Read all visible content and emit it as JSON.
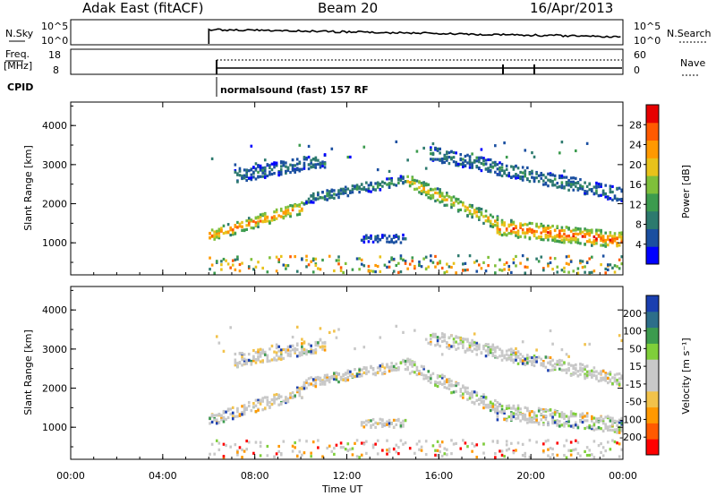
{
  "header": {
    "title": "Adak East (fitACF)",
    "beam": "Beam 20",
    "date": "16/Apr/2013"
  },
  "panels": {
    "nsky_label": "N.Sky",
    "nsky_ticks": [
      "10^5",
      "10^0"
    ],
    "nsky_right_ticks": [
      "10^5",
      "10^0"
    ],
    "nsearch_label": "N.Search",
    "freq_label_1": "Freq.",
    "freq_label_2": "[MHz]",
    "freq_ticks": [
      "18",
      "8"
    ],
    "nave_ticks": [
      "60",
      "0"
    ],
    "nave_label": "Nave",
    "cpid_label": "CPID",
    "cpid_text": "normalsound (fast) 157 RF"
  },
  "colors": {
    "power_scale": [
      "#0000ff",
      "#1a4fa0",
      "#2d7a6e",
      "#3c9b4e",
      "#7fbf3a",
      "#e8c21a",
      "#ff9900",
      "#ff5a00",
      "#e60000"
    ],
    "velocity_scale": [
      "#ff0000",
      "#ff5a00",
      "#ff9900",
      "#f2c24a",
      "#c8c8c8",
      "#c8c8c8",
      "#7fcf3a",
      "#3c9b4e",
      "#2d6e8a",
      "#1a3fb0"
    ]
  },
  "chart_data": [
    {
      "type": "heatmap",
      "name": "power-panel",
      "ylabel": "Slant Range [km]",
      "xlabel": "",
      "x_ticks": [
        "00:00",
        "04:00",
        "08:00",
        "12:00",
        "16:00",
        "20:00",
        "00:00"
      ],
      "y_ticks": [
        "1000",
        "2000",
        "3000",
        "4000"
      ],
      "xlim_hours": [
        0,
        24
      ],
      "ylim_km": [
        180,
        4600
      ],
      "colorbar_label": "Power [dB]",
      "colorbar_ticks": [
        "4",
        "8",
        "12",
        "16",
        "20",
        "24",
        "28"
      ],
      "colorbar_range": [
        0,
        30
      ],
      "data_start_hour": 6,
      "bands": [
        {
          "x": [
            6,
            10
          ],
          "y_center": [
            1180,
            1900
          ],
          "width": 220,
          "value": 24
        },
        {
          "x": [
            10,
            14.5
          ],
          "y_center": [
            2100,
            2600
          ],
          "width": 180,
          "value": 10
        },
        {
          "x": [
            14.5,
            18.5
          ],
          "y_center": [
            2600,
            1500
          ],
          "width": 250,
          "value": 20
        },
        {
          "x": [
            18.5,
            24
          ],
          "y_center": [
            1400,
            1050
          ],
          "width": 300,
          "value": 26
        },
        {
          "x": [
            7,
            11
          ],
          "y_center": [
            2700,
            3100
          ],
          "width": 250,
          "value": 8
        },
        {
          "x": [
            15.5,
            24
          ],
          "y_center": [
            3300,
            2200
          ],
          "width": 250,
          "value": 9
        },
        {
          "x": [
            12.5,
            14.5
          ],
          "y_center": [
            1100,
            1100
          ],
          "width": 150,
          "value": 6
        }
      ]
    },
    {
      "type": "heatmap",
      "name": "velocity-panel",
      "ylabel": "Slant Range [km]",
      "xlabel": "Time UT",
      "x_ticks": [
        "00:00",
        "04:00",
        "08:00",
        "12:00",
        "16:00",
        "20:00",
        "00:00"
      ],
      "y_ticks": [
        "1000",
        "2000",
        "3000",
        "4000"
      ],
      "xlim_hours": [
        0,
        24
      ],
      "ylim_km": [
        180,
        4600
      ],
      "colorbar_label": "Velocity [m s⁻¹]",
      "colorbar_ticks": [
        "200",
        "100",
        "50",
        "15",
        "-15",
        "-50",
        "-100",
        "-200"
      ],
      "data_start_hour": 6
    }
  ]
}
